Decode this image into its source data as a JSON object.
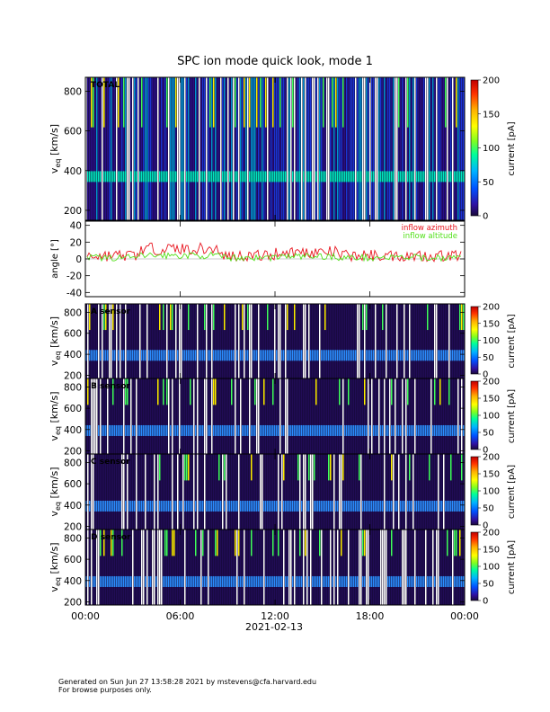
{
  "title": "SPC ion mode quick look, mode 1",
  "footer": {
    "line1": "Generated on Sun Jun 27 13:58:28 2021 by mstevens@cfa.harvard.edu",
    "line2": "For browse purposes only."
  },
  "chart_data": [
    {
      "type": "heatmap",
      "panel_label": "TOTAL",
      "ylabel_main": "v",
      "ylabel_sub": "eq",
      "ylabel_unit": "[km/s]",
      "ylim": [
        150,
        870
      ],
      "y_ticks": [
        "200",
        "400",
        "600",
        "800"
      ],
      "colorbar": {
        "label": "current [pA]",
        "range": [
          0,
          200
        ],
        "ticks": [
          "0",
          "50",
          "100",
          "150",
          "200"
        ]
      }
    },
    {
      "type": "line",
      "ylabel": "angle [°]",
      "ylim": [
        -45,
        45
      ],
      "y_ticks": [
        "-40",
        "-20",
        "0",
        "20",
        "40"
      ],
      "series": [
        {
          "name": "inflow azimuth",
          "color": "#e8141e"
        },
        {
          "name": "inflow altitude",
          "color": "#53e01a"
        }
      ]
    },
    {
      "type": "heatmap",
      "panel_label": "A sensor",
      "ylabel_main": "v",
      "ylabel_sub": "eq",
      "ylabel_unit": "[km/s]",
      "ylim": [
        170,
        880
      ],
      "y_ticks": [
        "200",
        "400",
        "600",
        "800"
      ],
      "colorbar": {
        "label": "current [pA]",
        "range": [
          0,
          200
        ],
        "ticks": [
          "0",
          "50",
          "100",
          "150",
          "200"
        ]
      }
    },
    {
      "type": "heatmap",
      "panel_label": "B sensor",
      "ylabel_main": "v",
      "ylabel_sub": "eq",
      "ylabel_unit": "[km/s]",
      "ylim": [
        170,
        880
      ],
      "y_ticks": [
        "200",
        "400",
        "600",
        "800"
      ],
      "colorbar": {
        "label": "current [pA]",
        "range": [
          0,
          200
        ],
        "ticks": [
          "0",
          "50",
          "100",
          "150",
          "200"
        ]
      }
    },
    {
      "type": "heatmap",
      "panel_label": "C sensor",
      "ylabel_main": "v",
      "ylabel_sub": "eq",
      "ylabel_unit": "[km/s]",
      "ylim": [
        170,
        880
      ],
      "y_ticks": [
        "200",
        "400",
        "600",
        "800"
      ],
      "colorbar": {
        "label": "current [pA]",
        "range": [
          0,
          200
        ],
        "ticks": [
          "0",
          "50",
          "100",
          "150",
          "200"
        ]
      }
    },
    {
      "type": "heatmap",
      "panel_label": "D sensor",
      "ylabel_main": "v",
      "ylabel_sub": "eq",
      "ylabel_unit": "[km/s]",
      "ylim": [
        170,
        880
      ],
      "y_ticks": [
        "200",
        "400",
        "600",
        "800"
      ],
      "colorbar": {
        "label": "current [pA]",
        "range": [
          0,
          200
        ],
        "ticks": [
          "0",
          "50",
          "100",
          "150",
          "200"
        ]
      }
    }
  ],
  "x_axis": {
    "ticks": [
      "00:00",
      "06:00",
      "12:00",
      "18:00",
      "00:00"
    ],
    "tick_hours": [
      0,
      6,
      12,
      18,
      24
    ],
    "date_label": "2021-02-13"
  }
}
